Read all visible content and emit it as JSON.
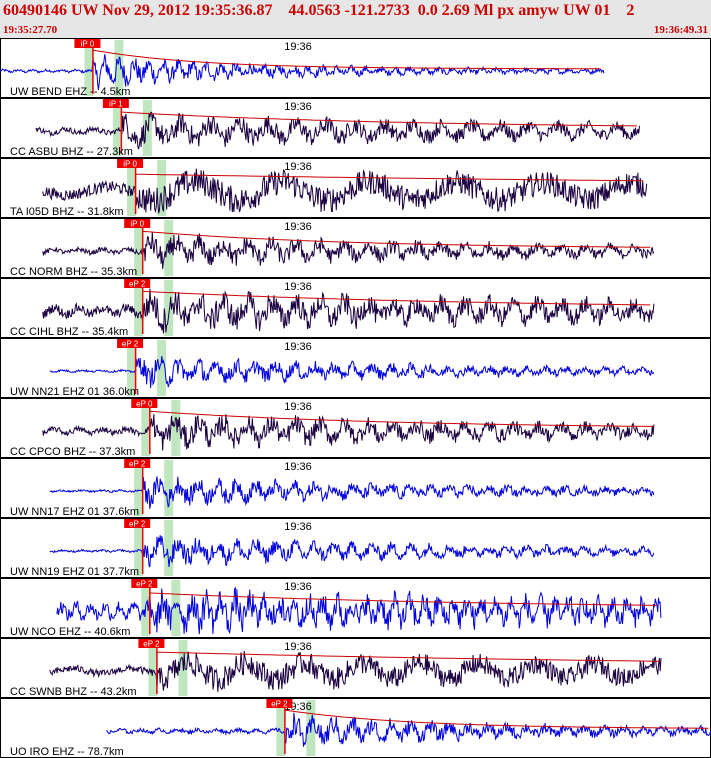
{
  "header": {
    "title": "60490146 UW Nov 29, 2012 19:35:36.87    44.0563 -121.2733  0.0 2.69 Ml px amyw UW 01    2",
    "start_time": "19:35:27.70",
    "end_time": "19:36:49.31"
  },
  "colors": {
    "header_text": "#cc0000",
    "header_bg": "#e6e6e6",
    "blue_trace": "#0000dd",
    "dark_trace": "#1a0040",
    "pick": "#ee0000",
    "window": "#bfe6bf",
    "envelope": "#cc0000"
  },
  "chart_data": {
    "type": "seismogram",
    "time_range": [
      "19:35:27.70",
      "19:36:49.31"
    ],
    "time_tick": "19:36",
    "traces": [
      {
        "label": "UW BEND EHZ -- 4.5km",
        "color": "blue",
        "pick_label": "iP 0",
        "start": 0.0,
        "end": 0.85,
        "onset": 0.13,
        "amp": 0.45,
        "noise": 0.05,
        "period": 3,
        "decay": 0.25,
        "envelope": true
      },
      {
        "label": "CC ASBU BHZ -- 27.3km",
        "color": "dark",
        "pick_label": "iP 1",
        "start": 0.05,
        "end": 0.9,
        "onset": 0.17,
        "amp": 0.4,
        "noise": 0.12,
        "period": 6,
        "decay": 0.7,
        "envelope": true
      },
      {
        "label": "TA I05D BHZ -- 31.8km",
        "color": "dark",
        "pick_label": "iP 0",
        "start": 0.06,
        "end": 0.91,
        "onset": 0.19,
        "amp": 0.35,
        "noise": 0.25,
        "period": 18,
        "decay": 2.0,
        "envelope": true
      },
      {
        "label": "CC NORM BHZ -- 35.3km",
        "color": "dark",
        "pick_label": "iP 0",
        "start": 0.06,
        "end": 0.92,
        "onset": 0.2,
        "amp": 0.42,
        "noise": 0.1,
        "period": 5,
        "decay": 0.5,
        "envelope": true
      },
      {
        "label": "CC CIHL BHZ -- 35.4km",
        "color": "dark",
        "pick_label": "eP 2",
        "start": 0.06,
        "end": 0.92,
        "onset": 0.2,
        "amp": 0.42,
        "noise": 0.2,
        "period": 5,
        "decay": 0.8,
        "envelope": true
      },
      {
        "label": "UW NN21 EHZ 01 36.0km",
        "color": "blue",
        "pick_label": "eP 2",
        "start": 0.07,
        "end": 0.92,
        "onset": 0.19,
        "amp": 0.42,
        "noise": 0.04,
        "period": 4,
        "decay": 0.45,
        "envelope": false
      },
      {
        "label": "CC CPCO BHZ -- 37.3km",
        "color": "dark",
        "pick_label": "eP 0",
        "start": 0.06,
        "end": 0.92,
        "onset": 0.21,
        "amp": 0.42,
        "noise": 0.12,
        "period": 5,
        "decay": 0.6,
        "envelope": true
      },
      {
        "label": "UW NN17 EHZ 01 37.6km",
        "color": "blue",
        "pick_label": "eP 2",
        "start": 0.07,
        "end": 0.92,
        "onset": 0.2,
        "amp": 0.42,
        "noise": 0.04,
        "period": 4,
        "decay": 0.45,
        "envelope": false
      },
      {
        "label": "UW NN19 EHZ 01 37.7km",
        "color": "blue",
        "pick_label": "eP 2",
        "start": 0.07,
        "end": 0.92,
        "onset": 0.2,
        "amp": 0.42,
        "noise": 0.04,
        "period": 4,
        "decay": 0.5,
        "envelope": false
      },
      {
        "label": "UW NCO EHZ -- 40.6km",
        "color": "blue",
        "pick_label": "eP 2",
        "start": 0.08,
        "end": 0.93,
        "onset": 0.21,
        "amp": 0.38,
        "noise": 0.28,
        "period": 3,
        "decay": 0.8,
        "envelope": true
      },
      {
        "label": "CC SWNB BHZ -- 43.2km",
        "color": "dark",
        "pick_label": "eP 2",
        "start": 0.07,
        "end": 0.93,
        "onset": 0.22,
        "amp": 0.4,
        "noise": 0.15,
        "period": 12,
        "decay": 1.5,
        "envelope": true
      },
      {
        "label": "UO IRO EHZ -- 78.7km",
        "color": "blue",
        "pick_label": "eP 2",
        "start": 0.15,
        "end": 1.0,
        "onset": 0.4,
        "amp": 0.45,
        "noise": 0.08,
        "period": 4,
        "decay": 0.3,
        "envelope": true
      }
    ]
  }
}
